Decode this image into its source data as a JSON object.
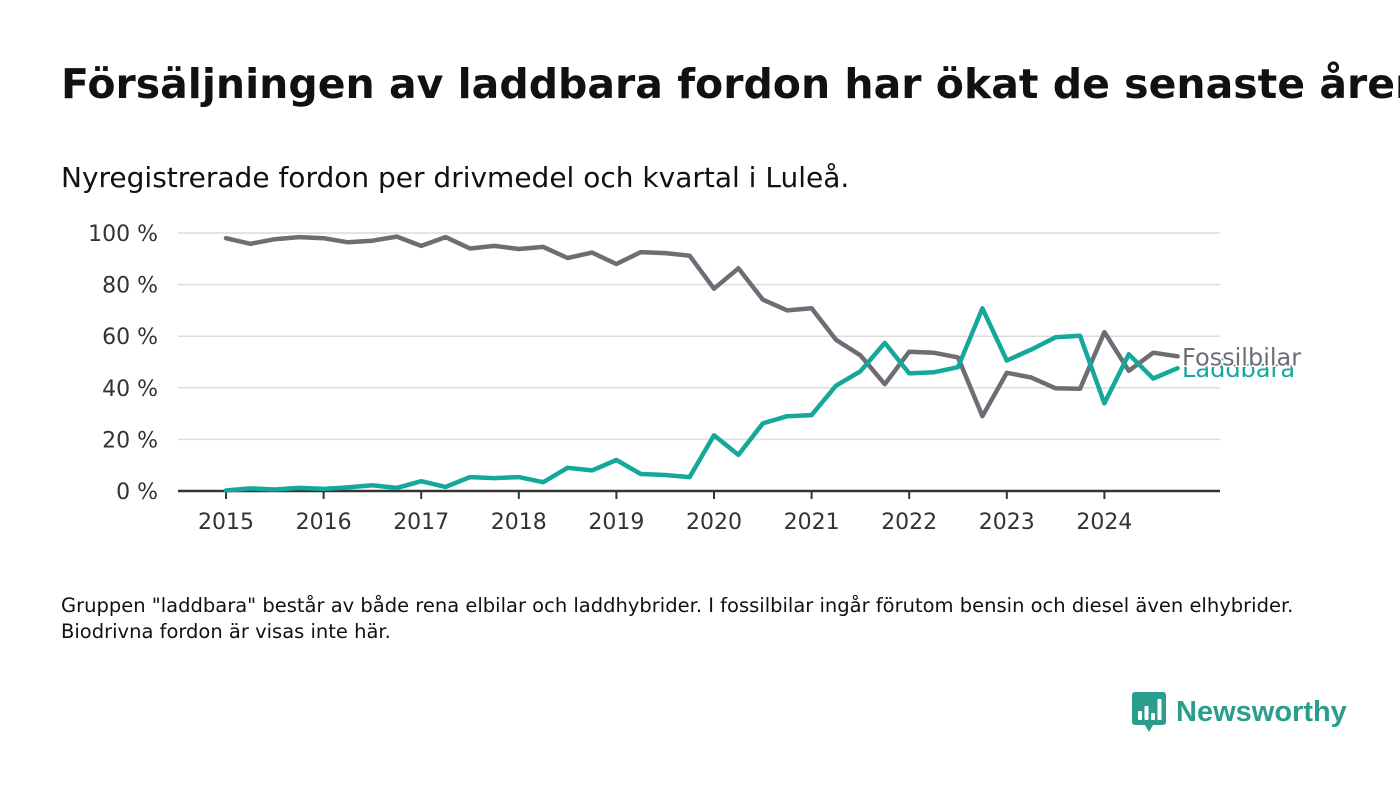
{
  "title": "Försäljningen av laddbara fordon har ökat de senaste åren",
  "subtitle": "Nyregistrerade fordon per drivmedel och kvartal i Luleå.",
  "footnote": "Gruppen \"laddbara\" består av både rena elbilar och laddhybrider. I fossilbilar ingår förutom bensin och diesel även elhybrider. Biodrivna fordon är visas inte här.",
  "brand": {
    "name": "Newsworthy",
    "icon": "newsworthy-logo-icon",
    "color": "#2a9d8f"
  },
  "chart_data": {
    "type": "line",
    "title": "Försäljningen av laddbara fordon har ökat de senaste åren",
    "subtitle": "Nyregistrerade fordon per drivmedel och kvartal i Luleå.",
    "xlabel": "",
    "ylabel": "",
    "x": [
      "2015-Q1",
      "2015-Q2",
      "2015-Q3",
      "2015-Q4",
      "2016-Q1",
      "2016-Q2",
      "2016-Q3",
      "2016-Q4",
      "2017-Q1",
      "2017-Q2",
      "2017-Q3",
      "2017-Q4",
      "2018-Q1",
      "2018-Q2",
      "2018-Q3",
      "2018-Q4",
      "2019-Q1",
      "2019-Q2",
      "2019-Q3",
      "2019-Q4",
      "2020-Q1",
      "2020-Q2",
      "2020-Q3",
      "2020-Q4",
      "2021-Q1",
      "2021-Q2",
      "2021-Q3",
      "2021-Q4",
      "2022-Q1",
      "2022-Q2",
      "2022-Q3",
      "2022-Q4",
      "2023-Q1",
      "2023-Q2",
      "2023-Q3",
      "2023-Q4",
      "2024-Q1",
      "2024-Q2",
      "2024-Q3",
      "2024-Q4"
    ],
    "x_tick_labels": [
      "2015",
      "2016",
      "2017",
      "2018",
      "2019",
      "2020",
      "2021",
      "2022",
      "2023",
      "2024"
    ],
    "y_tick_labels": [
      "0 %",
      "20 %",
      "40 %",
      "60 %",
      "80 %",
      "100 %"
    ],
    "y_ticks": [
      0,
      20,
      40,
      60,
      80,
      100
    ],
    "ylim": [
      0,
      100
    ],
    "grid": true,
    "legend": "direct labels at line ends",
    "series": [
      {
        "name": "Fossilbilar",
        "color": "#6e6d75",
        "values": [
          98,
          95.8,
          97.6,
          98.4,
          98,
          96.4,
          97,
          98.6,
          95,
          98.4,
          94,
          95,
          93.8,
          94.6,
          90.3,
          92.4,
          88,
          92.6,
          92.2,
          91.2,
          78.4,
          86.3,
          74.2,
          70,
          70.8,
          58.6,
          52.6,
          41.4,
          54,
          53.6,
          51.8,
          29,
          45.8,
          44,
          39.8,
          39.6,
          61.6,
          46.6,
          53.6,
          52.2
        ]
      },
      {
        "name": "Laddbara",
        "color": "#14a89a",
        "values": [
          0.2,
          1,
          0.6,
          1.2,
          0.8,
          1.4,
          2.2,
          1.2,
          3.8,
          1.6,
          5.4,
          5,
          5.4,
          3.4,
          9,
          8,
          12,
          6.6,
          6.2,
          5.4,
          21.6,
          14,
          26.2,
          29,
          29.4,
          40.8,
          46.4,
          57.4,
          45.6,
          46,
          48,
          70.8,
          50.6,
          54.8,
          59.6,
          60.2,
          34,
          53,
          43.6,
          47.6
        ]
      }
    ]
  }
}
